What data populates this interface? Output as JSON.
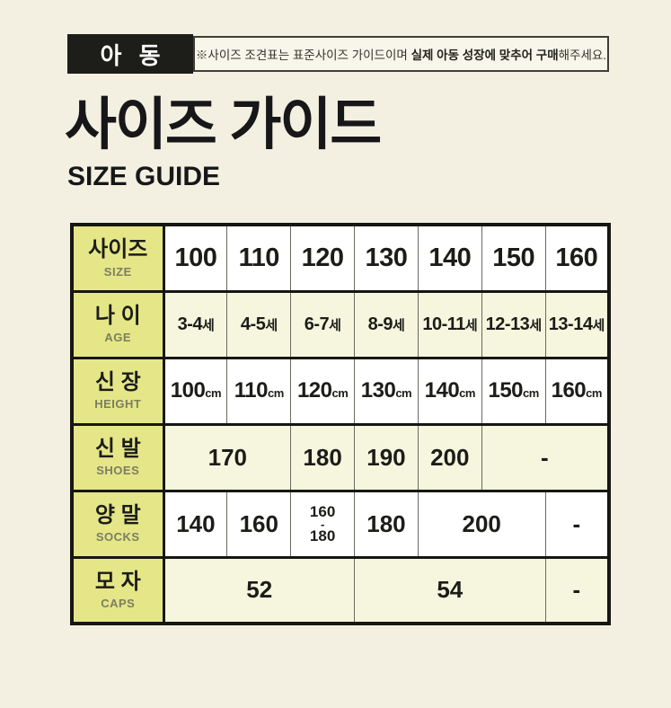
{
  "header": {
    "badge_label": "아 동",
    "notice": {
      "prefix": "※사이즈 조견표는 표준사이즈 가이드이며 ",
      "bold": "실제 아동 성장에 맞추어 구매",
      "suffix": "해주세요."
    }
  },
  "title": {
    "ko": "사이즈 가이드",
    "en": "SIZE GUIDE"
  },
  "colors": {
    "page_bg": "#f3f0e1",
    "badge_bg": "#1d1d1a",
    "header_cell_yellow": "#e5e687",
    "tinted_row": "#f6f6de",
    "border_dark": "#161613",
    "border_light": "#6a6a60",
    "sub_label_gray": "#7d7d60"
  },
  "table": {
    "column_count": 7,
    "rows": [
      {
        "label_ko": "사이즈",
        "label_en": "SIZE",
        "tinted": false,
        "style": "size",
        "cells": [
          {
            "t": "100"
          },
          {
            "t": "110"
          },
          {
            "t": "120"
          },
          {
            "t": "130"
          },
          {
            "t": "140"
          },
          {
            "t": "150"
          },
          {
            "t": "160"
          }
        ]
      },
      {
        "label_ko": "나 이",
        "label_en": "AGE",
        "tinted": true,
        "style": "age",
        "cells": [
          {
            "t": "3-4",
            "suffix": "세"
          },
          {
            "t": "4-5",
            "suffix": "세"
          },
          {
            "t": "6-7",
            "suffix": "세"
          },
          {
            "t": "8-9",
            "suffix": "세"
          },
          {
            "t": "10-11",
            "suffix": "세"
          },
          {
            "t": "12-13",
            "suffix": "세"
          },
          {
            "t": "13-14",
            "suffix": "세"
          }
        ]
      },
      {
        "label_ko": "신 장",
        "label_en": "HEIGHT",
        "tinted": false,
        "style": "height",
        "cells": [
          {
            "t": "100",
            "suffix": "cm"
          },
          {
            "t": "110",
            "suffix": "cm"
          },
          {
            "t": "120",
            "suffix": "cm"
          },
          {
            "t": "130",
            "suffix": "cm"
          },
          {
            "t": "140",
            "suffix": "cm"
          },
          {
            "t": "150",
            "suffix": "cm"
          },
          {
            "t": "160",
            "suffix": "cm"
          }
        ]
      },
      {
        "label_ko": "신 발",
        "label_en": "SHOES",
        "tinted": true,
        "style": "plain",
        "cells": [
          {
            "t": "170",
            "span": 2
          },
          {
            "t": "180"
          },
          {
            "t": "190"
          },
          {
            "t": "200"
          },
          {
            "t": "-",
            "span": 2
          }
        ]
      },
      {
        "label_ko": "양 말",
        "label_en": "SOCKS",
        "tinted": false,
        "style": "plain",
        "cells": [
          {
            "t": "140"
          },
          {
            "t": "160"
          },
          {
            "lines": [
              "160",
              "-",
              "180"
            ]
          },
          {
            "t": "180"
          },
          {
            "t": "200",
            "span": 2
          },
          {
            "t": "-"
          }
        ]
      },
      {
        "label_ko": "모 자",
        "label_en": "CAPS",
        "tinted": true,
        "style": "plain",
        "cells": [
          {
            "t": "52",
            "span": 3
          },
          {
            "t": "54",
            "span": 3
          },
          {
            "t": "-"
          }
        ]
      }
    ]
  }
}
